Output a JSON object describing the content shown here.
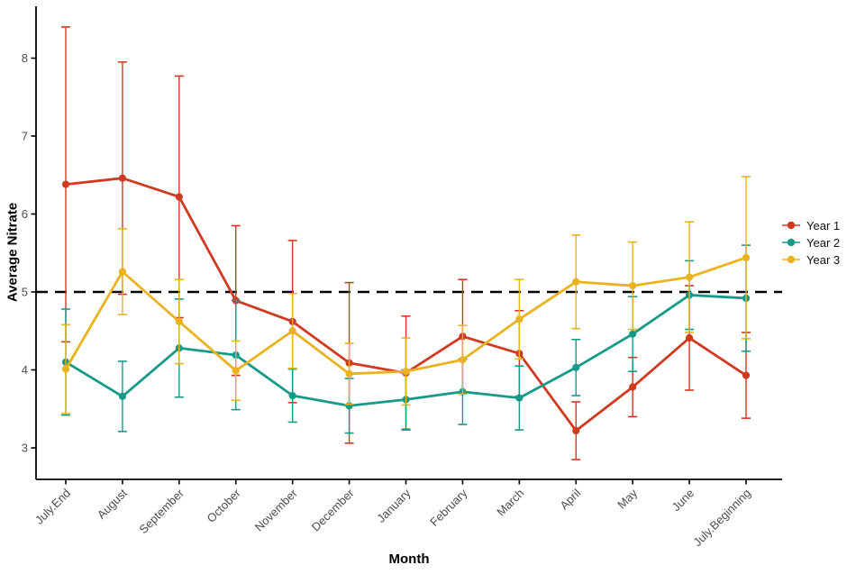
{
  "chart_data": {
    "type": "line",
    "title": "",
    "xlabel": "Month",
    "ylabel": "Average Nitrate",
    "categories": [
      "July.End",
      "August",
      "September",
      "October",
      "November",
      "December",
      "January",
      "February",
      "March",
      "April",
      "May",
      "June",
      "July.Beginning"
    ],
    "yticks": [
      3,
      4,
      5,
      6,
      7,
      8
    ],
    "ylim": [
      2.55,
      8.65
    ],
    "grid": false,
    "legend_position": "right",
    "error_bars": true,
    "reference_line": {
      "y": 5.0,
      "style": "dashed",
      "color": "#000000"
    },
    "axis_color": "#000000",
    "tick_label_color": "#4d4d4d",
    "series": [
      {
        "name": "Year 1",
        "color": "#D03A20",
        "values": [
          6.38,
          6.46,
          6.22,
          4.89,
          4.62,
          4.09,
          3.96,
          4.43,
          4.21,
          3.22,
          3.78,
          4.41,
          3.93
        ],
        "upper": [
          8.4,
          7.95,
          7.77,
          5.85,
          5.66,
          5.12,
          4.69,
          5.16,
          4.76,
          3.59,
          4.16,
          5.08,
          4.48
        ],
        "lower": [
          4.36,
          4.97,
          4.67,
          3.93,
          3.58,
          3.06,
          3.23,
          3.7,
          3.66,
          2.85,
          3.4,
          3.74,
          3.38
        ]
      },
      {
        "name": "Year 2",
        "color": "#169B8A",
        "values": [
          4.1,
          3.66,
          4.28,
          4.19,
          3.67,
          3.54,
          3.62,
          3.72,
          3.64,
          4.03,
          4.46,
          4.96,
          4.92
        ],
        "upper": [
          4.78,
          4.11,
          4.91,
          4.89,
          4.01,
          3.89,
          4.0,
          4.14,
          4.05,
          4.39,
          4.94,
          5.4,
          5.6
        ],
        "lower": [
          3.42,
          3.21,
          3.65,
          3.49,
          3.33,
          3.19,
          3.24,
          3.3,
          3.23,
          3.67,
          3.98,
          4.52,
          4.24
        ]
      },
      {
        "name": "Year 3",
        "color": "#EAB31E",
        "values": [
          4.01,
          5.26,
          4.62,
          3.99,
          4.5,
          3.95,
          3.98,
          4.13,
          4.65,
          5.13,
          5.08,
          5.19,
          5.44
        ],
        "upper": [
          4.58,
          5.81,
          5.16,
          4.37,
          4.98,
          4.34,
          4.41,
          4.57,
          5.16,
          5.73,
          5.64,
          5.9,
          6.48
        ],
        "lower": [
          3.44,
          4.71,
          4.08,
          3.61,
          4.02,
          3.56,
          3.55,
          3.69,
          4.14,
          4.53,
          4.52,
          4.48,
          4.4
        ]
      }
    ]
  }
}
